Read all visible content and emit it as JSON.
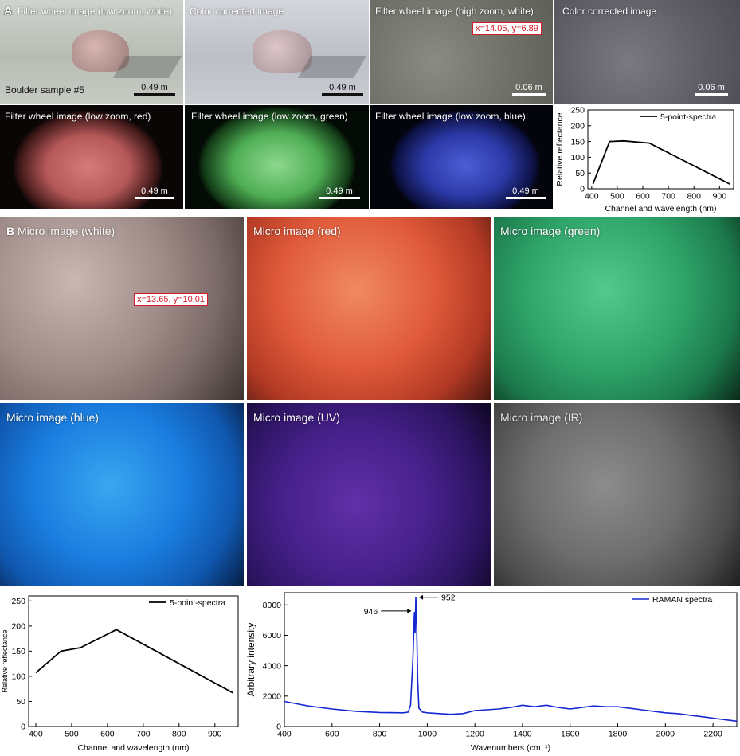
{
  "panel_a": {
    "letter": "A",
    "images": [
      {
        "caption": "Filter wheel image (low zoom, white)",
        "scale": "0.49 m",
        "extra_label": "Boulder sample #5"
      },
      {
        "caption": "Color corrected image",
        "scale": "0.49 m"
      },
      {
        "caption": "Filter wheel image (high zoom, white)",
        "scale": "0.06 m",
        "coord": "x=14.05, y=6.89"
      },
      {
        "caption": "Color corrected image",
        "scale": "0.06 m"
      },
      {
        "caption": "Filter wheel image (low zoom, red)",
        "scale": "0.49 m"
      },
      {
        "caption": "Filter wheel image (low zoom, green)",
        "scale": "0.49 m"
      },
      {
        "caption": "Filter wheel image (low zoom, blue)",
        "scale": "0.49 m"
      }
    ]
  },
  "panel_b": {
    "letter": "B",
    "images": [
      {
        "caption": "Micro image (white)",
        "coord": "x=13.65, y=10.01"
      },
      {
        "caption": "Micro image (red)"
      },
      {
        "caption": "Micro image (green)"
      },
      {
        "caption": "Micro image (blue)"
      },
      {
        "caption": "Micro image (UV)"
      },
      {
        "caption": "Micro image (IR)"
      }
    ]
  },
  "chart_data": [
    {
      "type": "line",
      "title": "",
      "xlabel": "Channel and wavelength (nm)",
      "ylabel": "Relative reflectance",
      "xlim": [
        385,
        955
      ],
      "ylim": [
        0,
        250
      ],
      "xticks": [
        400,
        500,
        600,
        700,
        800,
        900
      ],
      "yticks": [
        0,
        50,
        100,
        150,
        200,
        250
      ],
      "legend_position": "top-right",
      "series": [
        {
          "name": "5-point-spectra",
          "color": "#000000",
          "x": [
            405,
            470,
            525,
            625,
            940
          ],
          "y": [
            15,
            150,
            152,
            145,
            15
          ]
        }
      ]
    },
    {
      "type": "line",
      "title": "",
      "xlabel": "Channel and wavelength (nm)",
      "ylabel": "Relative reflectance",
      "xlim": [
        380,
        965
      ],
      "ylim": [
        0,
        260
      ],
      "xticks": [
        400,
        500,
        600,
        700,
        800,
        900
      ],
      "yticks": [
        0,
        50,
        100,
        150,
        200,
        250
      ],
      "legend_position": "top-right",
      "series": [
        {
          "name": "5-point-spectra",
          "color": "#000000",
          "x": [
            400,
            470,
            525,
            625,
            950
          ],
          "y": [
            107,
            150,
            157,
            193,
            67
          ]
        }
      ]
    },
    {
      "type": "line",
      "title": "",
      "xlabel": "Wavenumbers (cm⁻¹)",
      "ylabel": "Arbitrary intensity",
      "xlim": [
        400,
        2300
      ],
      "ylim": [
        0,
        8800
      ],
      "xticks": [
        400,
        600,
        800,
        1000,
        1200,
        1400,
        1600,
        1800,
        2000,
        2200
      ],
      "yticks": [
        0,
        2000,
        4000,
        6000,
        8000
      ],
      "legend_position": "top-right",
      "annotations": [
        {
          "text": "946",
          "x": 946,
          "y": 7600
        },
        {
          "text": "952",
          "x": 952,
          "y": 8500
        }
      ],
      "series": [
        {
          "name": "RAMAN spectra",
          "color": "#1428d2",
          "x": [
            400,
            450,
            500,
            600,
            700,
            800,
            900,
            920,
            930,
            940,
            946,
            949,
            952,
            955,
            960,
            965,
            980,
            1000,
            1050,
            1100,
            1150,
            1200,
            1250,
            1300,
            1350,
            1400,
            1450,
            1500,
            1550,
            1600,
            1650,
            1700,
            1750,
            1800,
            1850,
            1900,
            1950,
            2000,
            2050,
            2100,
            2150,
            2200,
            2250,
            2300
          ],
          "y": [
            1650,
            1500,
            1350,
            1150,
            1000,
            920,
            900,
            950,
            1400,
            4500,
            7500,
            6200,
            8500,
            7000,
            3000,
            1200,
            950,
            900,
            850,
            800,
            850,
            1050,
            1100,
            1150,
            1250,
            1400,
            1300,
            1400,
            1250,
            1150,
            1250,
            1350,
            1300,
            1300,
            1200,
            1100,
            1000,
            900,
            850,
            750,
            650,
            550,
            450,
            350
          ]
        }
      ]
    }
  ]
}
